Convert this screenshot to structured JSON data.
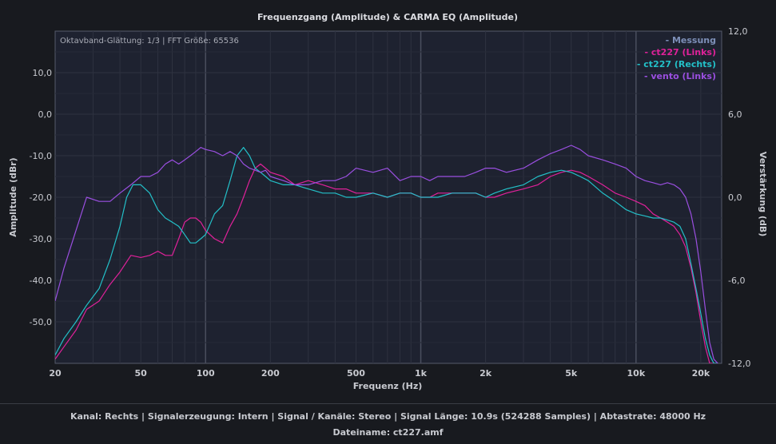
{
  "chart_data": {
    "type": "line",
    "title": "Frequenzgang (Amplitude) & CARMA EQ (Amplitude)",
    "info": "Oktavband-Glättung: 1/3 | FFT Größe: 65536",
    "xlabel": "Frequenz (Hz)",
    "ylabel": "Amplitude (dBr)",
    "y2label": "Verstärkung (dB)",
    "xscale": "log",
    "xlim": [
      20,
      25000
    ],
    "ylim": [
      -60,
      20
    ],
    "y2lim": [
      -12,
      12
    ],
    "grid": true,
    "legend_position": "top-right",
    "x_ticks": [
      20,
      50,
      100,
      200,
      500,
      1000,
      2000,
      5000,
      10000,
      20000
    ],
    "x_tick_labels": [
      "20",
      "50",
      "100",
      "200",
      "500",
      "1k",
      "2k",
      "5k",
      "10k",
      "20k"
    ],
    "y_ticks": [
      10,
      0,
      -10,
      -20,
      -30,
      -40,
      -50
    ],
    "y_tick_labels": [
      "10,0",
      "0,0",
      "-10,0",
      "-20,0",
      "-30,0",
      "-40,0",
      "-50,0"
    ],
    "y2_ticks": [
      12,
      6,
      0,
      -6,
      -12
    ],
    "y2_tick_labels": [
      "12,0",
      "6,0",
      "0,0",
      "-6,0",
      "-12,0"
    ],
    "legend": [
      "- Messung",
      "- ct227 (Links)",
      "- ct227 (Rechts)",
      "- vento (Links)"
    ],
    "series": [
      {
        "name": "ct227 (Links)",
        "color": "#e0219a",
        "x": [
          20,
          22,
          25,
          28,
          32,
          36,
          40,
          45,
          50,
          55,
          60,
          65,
          70,
          75,
          80,
          85,
          90,
          95,
          100,
          110,
          120,
          130,
          140,
          150,
          160,
          170,
          180,
          190,
          200,
          230,
          260,
          300,
          350,
          400,
          450,
          500,
          600,
          700,
          800,
          900,
          1000,
          1100,
          1200,
          1400,
          1600,
          1800,
          2000,
          2200,
          2500,
          3000,
          3500,
          4000,
          4500,
          5000,
          5500,
          6000,
          7000,
          8000,
          9000,
          10000,
          11000,
          12000,
          13000,
          14000,
          15000,
          16000,
          17000,
          18000,
          19000,
          20000,
          21000,
          22000,
          23000,
          24000
        ],
        "y": [
          -59,
          -56,
          -52,
          -47,
          -45,
          -41,
          -38,
          -34,
          -34.5,
          -34,
          -33,
          -34,
          -34,
          -30,
          -26,
          -25,
          -25,
          -26,
          -28,
          -30,
          -31,
          -27,
          -24,
          -20,
          -16,
          -13,
          -12,
          -13,
          -14,
          -15,
          -17,
          -16,
          -17,
          -18,
          -18,
          -19,
          -19,
          -20,
          -19,
          -19,
          -20,
          -20,
          -19,
          -19,
          -19,
          -19,
          -20,
          -20,
          -19,
          -18,
          -17,
          -15,
          -14,
          -13.5,
          -14,
          -15,
          -17,
          -19,
          -20,
          -21,
          -22,
          -24,
          -25,
          -26,
          -27,
          -29,
          -32,
          -37,
          -43,
          -50,
          -56,
          -60,
          -60,
          -60
        ]
      },
      {
        "name": "ct227 (Rechts)",
        "color": "#23c0c8",
        "x": [
          20,
          22,
          25,
          28,
          32,
          36,
          40,
          43,
          46,
          50,
          55,
          60,
          65,
          70,
          75,
          80,
          85,
          90,
          95,
          100,
          110,
          120,
          130,
          140,
          150,
          160,
          170,
          180,
          190,
          200,
          230,
          260,
          300,
          350,
          400,
          450,
          500,
          600,
          700,
          800,
          900,
          1000,
          1100,
          1200,
          1400,
          1600,
          1800,
          2000,
          2200,
          2500,
          3000,
          3500,
          4000,
          4500,
          5000,
          5500,
          6000,
          7000,
          8000,
          9000,
          10000,
          11000,
          12000,
          13000,
          14000,
          15000,
          16000,
          17000,
          18000,
          19000,
          20000,
          21000,
          22000,
          23000,
          24000
        ],
        "y": [
          -58,
          -54,
          -50,
          -46,
          -42,
          -35,
          -27,
          -20,
          -17,
          -17,
          -19,
          -23,
          -25,
          -26,
          -27,
          -29,
          -31,
          -31,
          -30,
          -29,
          -24,
          -22,
          -16,
          -10,
          -8,
          -10,
          -13,
          -14,
          -15,
          -16,
          -17,
          -17,
          -18,
          -19,
          -19,
          -20,
          -20,
          -19,
          -20,
          -19,
          -19,
          -20,
          -20,
          -20,
          -19,
          -19,
          -19,
          -20,
          -19,
          -18,
          -17,
          -15,
          -14,
          -13.5,
          -14,
          -15,
          -16,
          -19,
          -21,
          -23,
          -24,
          -24.5,
          -25,
          -25,
          -25.5,
          -26,
          -27,
          -30,
          -36,
          -42,
          -48,
          -54,
          -58,
          -60,
          -60
        ]
      },
      {
        "name": "vento (Links)",
        "color": "#9a4fe0",
        "x": [
          20,
          22,
          25,
          28,
          32,
          36,
          40,
          45,
          50,
          55,
          60,
          65,
          70,
          75,
          80,
          85,
          90,
          95,
          100,
          110,
          120,
          130,
          140,
          150,
          160,
          170,
          180,
          190,
          200,
          230,
          260,
          300,
          350,
          400,
          450,
          500,
          600,
          700,
          800,
          900,
          1000,
          1100,
          1200,
          1400,
          1600,
          1800,
          2000,
          2200,
          2500,
          3000,
          3500,
          4000,
          4500,
          5000,
          5500,
          6000,
          7000,
          8000,
          9000,
          10000,
          11000,
          12000,
          13000,
          14000,
          15000,
          16000,
          17000,
          18000,
          19000,
          20000,
          21000,
          22000,
          23000,
          24000
        ],
        "y": [
          -45,
          -37,
          -28,
          -20,
          -21,
          -21,
          -19,
          -17,
          -15,
          -15,
          -14,
          -12,
          -11,
          -12,
          -11,
          -10,
          -9,
          -8,
          -8.5,
          -9,
          -10,
          -9,
          -10,
          -12,
          -13,
          -13.5,
          -14,
          -13.5,
          -15,
          -16,
          -17,
          -17,
          -16,
          -16,
          -15,
          -13,
          -14,
          -13,
          -16,
          -15,
          -15,
          -16,
          -15,
          -15,
          -15,
          -14,
          -13,
          -13,
          -14,
          -13,
          -11,
          -9.5,
          -8.5,
          -7.5,
          -8.5,
          -10,
          -11,
          -12,
          -13,
          -15,
          -16,
          -16.5,
          -17,
          -16.5,
          -17,
          -18,
          -20,
          -24,
          -30,
          -38,
          -47,
          -55,
          -59,
          -60
        ]
      }
    ]
  },
  "status": {
    "line1": "Kanal: Rechts  |  Signalerzeugung: Intern  |  Signal / Kanäle: Stereo  |  Signal Länge: 10.9s (524288 Samples)  |  Abtastrate: 48000 Hz",
    "line2": "Dateiname: ct227.amf"
  }
}
